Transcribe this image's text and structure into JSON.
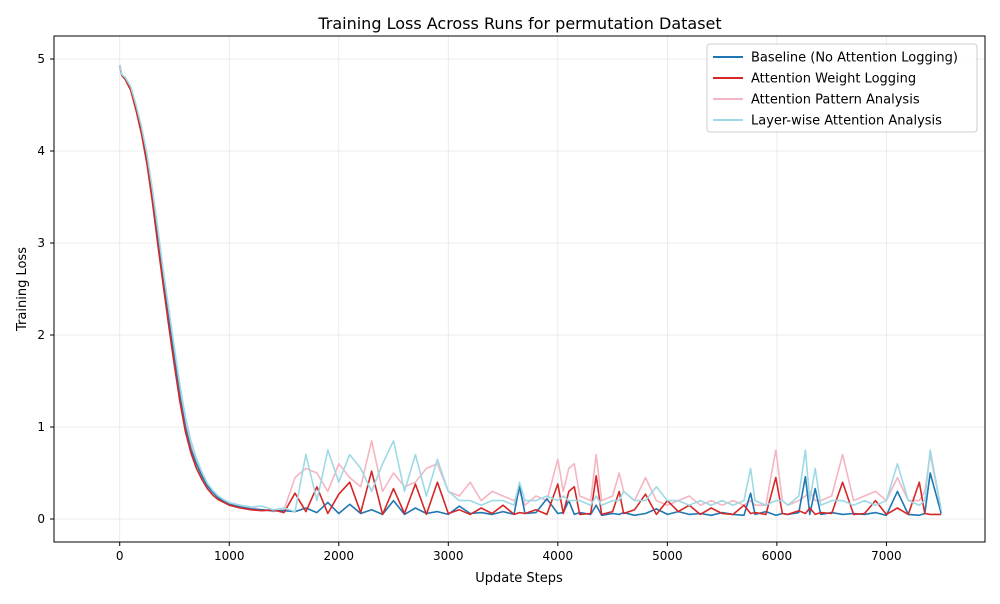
{
  "chart_data": {
    "type": "line",
    "title": "Training Loss Across Runs for permutation Dataset",
    "xlabel": "Update Steps",
    "ylabel": "Training Loss",
    "xlim": [
      -600,
      7900
    ],
    "ylim": [
      -0.25,
      5.25
    ],
    "xticks": [
      0,
      1000,
      2000,
      3000,
      4000,
      5000,
      6000,
      7000
    ],
    "yticks": [
      0,
      1,
      2,
      3,
      4,
      5
    ],
    "grid": true,
    "legend_position": "top-right",
    "x": [
      0,
      20,
      50,
      100,
      150,
      200,
      250,
      300,
      350,
      400,
      450,
      500,
      550,
      600,
      650,
      700,
      750,
      800,
      850,
      900,
      950,
      1000,
      1100,
      1200,
      1300,
      1400,
      1500,
      1600,
      1700,
      1800,
      1900,
      2000,
      2100,
      2200,
      2300,
      2400,
      2500,
      2600,
      2700,
      2800,
      2900,
      3000,
      3100,
      3200,
      3300,
      3400,
      3500,
      3600,
      3650,
      3700,
      3800,
      3900,
      4000,
      4050,
      4100,
      4150,
      4200,
      4300,
      4350,
      4400,
      4500,
      4560,
      4600,
      4700,
      4800,
      4900,
      5000,
      5100,
      5200,
      5300,
      5400,
      5500,
      5600,
      5700,
      5760,
      5800,
      5900,
      5990,
      6050,
      6100,
      6200,
      6260,
      6300,
      6350,
      6400,
      6500,
      6600,
      6700,
      6800,
      6900,
      7000,
      7100,
      7200,
      7300,
      7350,
      7400,
      7500
    ],
    "series": [
      {
        "name": "Baseline (No Attention Logging)",
        "color": "#1f77b4",
        "values": [
          4.93,
          4.82,
          4.78,
          4.67,
          4.45,
          4.2,
          3.88,
          3.47,
          3.02,
          2.57,
          2.15,
          1.73,
          1.33,
          1.0,
          0.76,
          0.6,
          0.47,
          0.36,
          0.29,
          0.23,
          0.19,
          0.16,
          0.13,
          0.11,
          0.1,
          0.09,
          0.09,
          0.08,
          0.12,
          0.07,
          0.18,
          0.06,
          0.16,
          0.06,
          0.1,
          0.05,
          0.2,
          0.05,
          0.12,
          0.06,
          0.08,
          0.05,
          0.14,
          0.06,
          0.07,
          0.05,
          0.08,
          0.05,
          0.36,
          0.06,
          0.07,
          0.22,
          0.06,
          0.07,
          0.2,
          0.05,
          0.07,
          0.05,
          0.15,
          0.04,
          0.06,
          0.05,
          0.07,
          0.04,
          0.06,
          0.11,
          0.05,
          0.08,
          0.05,
          0.06,
          0.04,
          0.07,
          0.05,
          0.04,
          0.28,
          0.05,
          0.08,
          0.04,
          0.06,
          0.05,
          0.07,
          0.46,
          0.05,
          0.33,
          0.05,
          0.07,
          0.05,
          0.06,
          0.05,
          0.07,
          0.04,
          0.3,
          0.05,
          0.04,
          0.06,
          0.5,
          0.06
        ]
      },
      {
        "name": "Attention Weight Logging",
        "color": "#d62728",
        "values": [
          4.93,
          4.82,
          4.78,
          4.66,
          4.44,
          4.18,
          3.85,
          3.43,
          2.96,
          2.52,
          2.08,
          1.66,
          1.27,
          0.95,
          0.72,
          0.55,
          0.43,
          0.33,
          0.26,
          0.21,
          0.18,
          0.15,
          0.12,
          0.1,
          0.09,
          0.1,
          0.07,
          0.28,
          0.08,
          0.35,
          0.06,
          0.27,
          0.4,
          0.07,
          0.52,
          0.05,
          0.33,
          0.06,
          0.38,
          0.05,
          0.4,
          0.06,
          0.1,
          0.05,
          0.12,
          0.06,
          0.15,
          0.05,
          0.07,
          0.06,
          0.1,
          0.05,
          0.38,
          0.06,
          0.3,
          0.35,
          0.05,
          0.06,
          0.47,
          0.05,
          0.08,
          0.3,
          0.06,
          0.1,
          0.27,
          0.05,
          0.2,
          0.08,
          0.15,
          0.05,
          0.12,
          0.06,
          0.05,
          0.15,
          0.06,
          0.07,
          0.05,
          0.45,
          0.06,
          0.05,
          0.09,
          0.06,
          0.12,
          0.05,
          0.07,
          0.06,
          0.4,
          0.05,
          0.06,
          0.2,
          0.05,
          0.12,
          0.05,
          0.4,
          0.06,
          0.05,
          0.05
        ]
      },
      {
        "name": "Attention Pattern Analysis",
        "color": "#f4b6c2",
        "values": [
          4.93,
          4.82,
          4.79,
          4.68,
          4.47,
          4.23,
          3.92,
          3.52,
          3.07,
          2.62,
          2.2,
          1.78,
          1.38,
          1.05,
          0.8,
          0.62,
          0.48,
          0.37,
          0.3,
          0.24,
          0.2,
          0.17,
          0.14,
          0.12,
          0.1,
          0.08,
          0.1,
          0.45,
          0.55,
          0.5,
          0.3,
          0.6,
          0.45,
          0.35,
          0.85,
          0.3,
          0.5,
          0.35,
          0.4,
          0.55,
          0.6,
          0.3,
          0.25,
          0.4,
          0.2,
          0.3,
          0.25,
          0.2,
          0.3,
          0.15,
          0.25,
          0.2,
          0.65,
          0.3,
          0.55,
          0.6,
          0.25,
          0.2,
          0.7,
          0.2,
          0.25,
          0.5,
          0.3,
          0.2,
          0.45,
          0.2,
          0.15,
          0.2,
          0.25,
          0.15,
          0.2,
          0.15,
          0.2,
          0.15,
          0.2,
          0.15,
          0.15,
          0.75,
          0.2,
          0.15,
          0.2,
          0.25,
          0.3,
          0.2,
          0.2,
          0.25,
          0.7,
          0.2,
          0.25,
          0.3,
          0.2,
          0.45,
          0.2,
          0.2,
          0.3,
          0.7,
          0.1
        ]
      },
      {
        "name": "Layer-wise Attention Analysis",
        "color": "#9edae5",
        "values": [
          4.93,
          4.83,
          4.8,
          4.7,
          4.5,
          4.26,
          3.96,
          3.57,
          3.13,
          2.68,
          2.27,
          1.85,
          1.45,
          1.11,
          0.85,
          0.66,
          0.51,
          0.39,
          0.31,
          0.25,
          0.21,
          0.18,
          0.15,
          0.13,
          0.14,
          0.1,
          0.12,
          0.08,
          0.7,
          0.2,
          0.75,
          0.4,
          0.7,
          0.55,
          0.3,
          0.6,
          0.85,
          0.3,
          0.7,
          0.25,
          0.65,
          0.3,
          0.2,
          0.2,
          0.15,
          0.2,
          0.2,
          0.15,
          0.4,
          0.2,
          0.2,
          0.25,
          0.2,
          0.25,
          0.2,
          0.2,
          0.2,
          0.15,
          0.25,
          0.15,
          0.2,
          0.2,
          0.3,
          0.2,
          0.2,
          0.35,
          0.2,
          0.2,
          0.15,
          0.2,
          0.15,
          0.2,
          0.15,
          0.2,
          0.55,
          0.2,
          0.15,
          0.2,
          0.2,
          0.15,
          0.25,
          0.75,
          0.2,
          0.55,
          0.15,
          0.2,
          0.2,
          0.15,
          0.2,
          0.15,
          0.2,
          0.6,
          0.2,
          0.15,
          0.2,
          0.75,
          0.1
        ]
      }
    ]
  }
}
